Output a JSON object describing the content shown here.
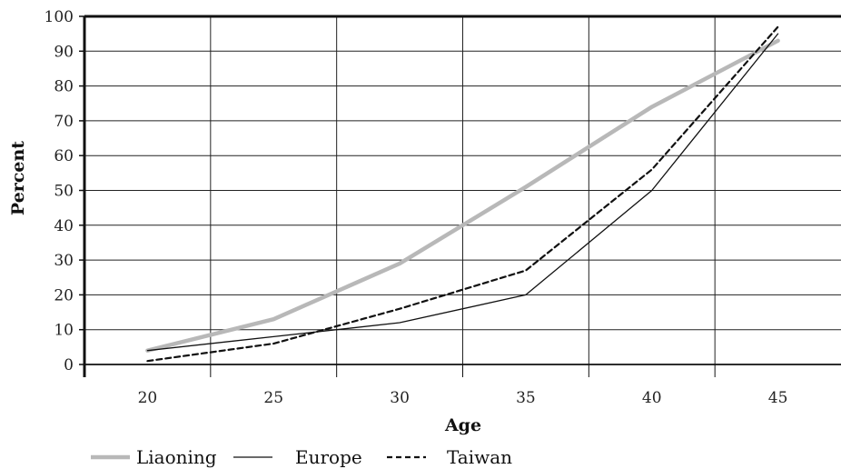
{
  "chart_data": {
    "type": "line",
    "title": "",
    "xlabel": "Age",
    "ylabel": "Percent",
    "x": [
      20,
      25,
      30,
      35,
      40,
      45
    ],
    "x_tick_labels": [
      "20",
      "25",
      "30",
      "35",
      "40",
      "45"
    ],
    "y_tick_labels": [
      "0",
      "10",
      "20",
      "30",
      "40",
      "50",
      "60",
      "70",
      "80",
      "90",
      "100"
    ],
    "xlim": [
      17.5,
      47.5
    ],
    "ylim": [
      0,
      100
    ],
    "grid": true,
    "legend_position": "bottom-left",
    "series": [
      {
        "name": "Liaoning",
        "values": [
          4,
          13,
          29,
          51,
          74,
          93
        ],
        "color": "#b8b8b8",
        "line_style": "solid-thick"
      },
      {
        "name": "Europe",
        "values": [
          4,
          8,
          12,
          20,
          50,
          95
        ],
        "color": "#111111",
        "line_style": "solid-thin"
      },
      {
        "name": "Taiwan",
        "values": [
          1,
          6,
          16,
          27,
          56,
          97
        ],
        "color": "#111111",
        "line_style": "dashed"
      }
    ]
  }
}
